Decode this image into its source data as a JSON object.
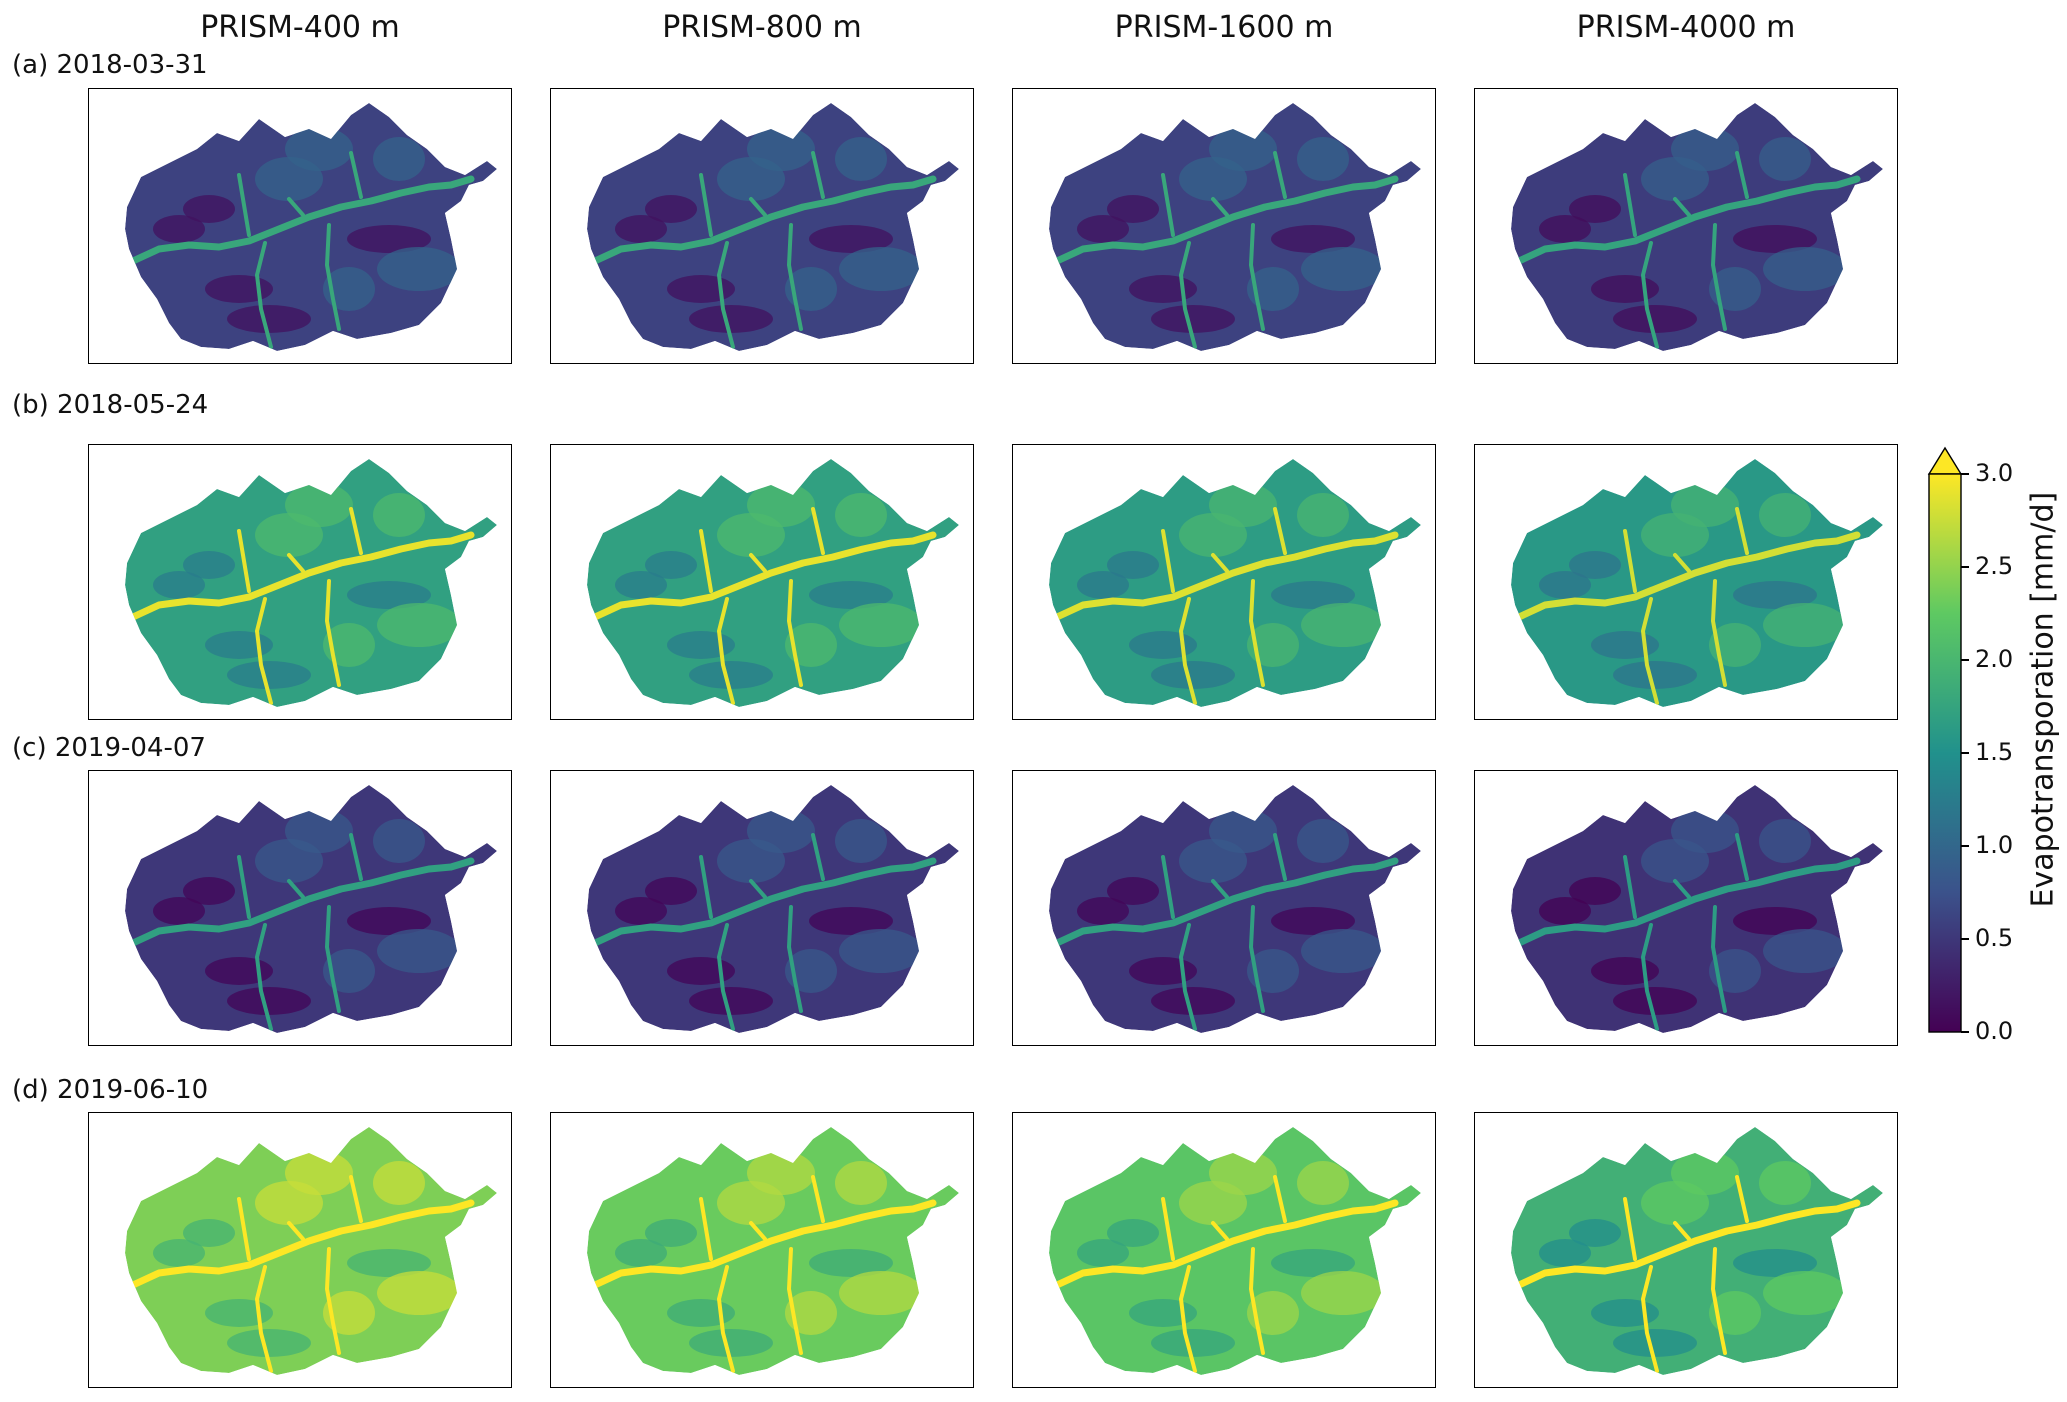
{
  "chart_data": {
    "type": "heatmap",
    "title": "",
    "columns": [
      "PRISM-400 m",
      "PRISM-800 m",
      "PRISM-1600 m",
      "PRISM-4000 m"
    ],
    "rows": [
      "(a) 2018-03-31",
      "(b) 2018-05-24",
      "(c) 2019-04-07",
      "(d) 2019-06-10"
    ],
    "panel_mean_values": [
      [
        0.6,
        0.6,
        0.6,
        0.55
      ],
      [
        1.7,
        1.7,
        1.65,
        1.6
      ],
      [
        0.5,
        0.5,
        0.5,
        0.45
      ],
      [
        2.4,
        2.3,
        2.2,
        1.9
      ]
    ],
    "colorbar": {
      "label": "Evapotransporation [mm/d]",
      "vmin": 0.0,
      "vmax": 3.0,
      "extend": "max",
      "ticks": [
        "0.0",
        "0.5",
        "1.0",
        "1.5",
        "2.0",
        "2.5",
        "3.0"
      ],
      "colormap": "viridis",
      "colors": [
        "#440154",
        "#3b528b",
        "#21918c",
        "#5ec962",
        "#fde725"
      ]
    }
  }
}
